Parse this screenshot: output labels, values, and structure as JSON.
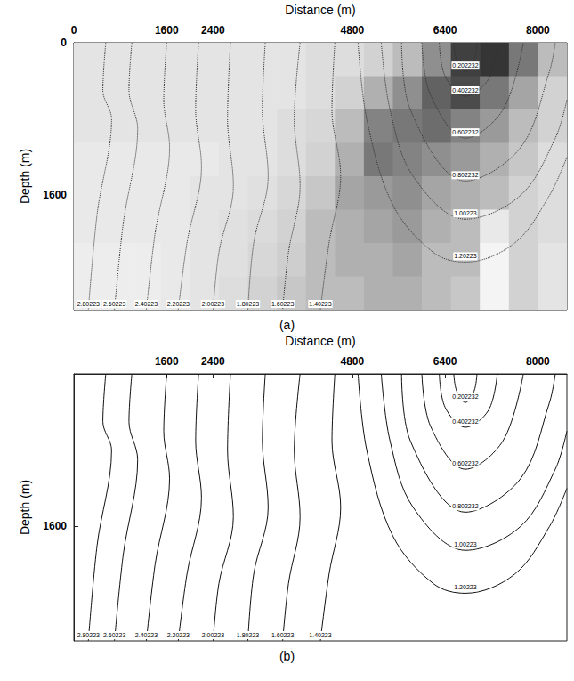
{
  "chart_data": [
    {
      "type": "contour",
      "label": "(a)",
      "x_label": "Distance (m)",
      "y_label": "Depth (m)",
      "xlim": [
        0,
        8500
      ],
      "ylim": [
        0,
        2800
      ],
      "xticks": [
        0,
        1600,
        2400,
        4800,
        6400,
        8000
      ],
      "yticks": [
        0,
        1600
      ],
      "grid": false,
      "line_style": "dotted",
      "color": "#333333",
      "amplitude": {
        "x_bins": [
          0,
          500,
          1000,
          1500,
          2000,
          2500,
          3000,
          3500,
          4000,
          4500,
          5000,
          5500,
          6000,
          6500,
          7000,
          7500,
          8000,
          8500
        ],
        "depth_bins": [
          0,
          350,
          700,
          1050,
          1400,
          1750,
          2100,
          2450,
          2800
        ],
        "values": [
          [
            0.12,
            0.12,
            0.12,
            0.12,
            0.12,
            0.12,
            0.12,
            0.12,
            0.15,
            0.15,
            0.2,
            0.3,
            0.5,
            0.85,
            0.9,
            0.6,
            0.3
          ],
          [
            0.12,
            0.12,
            0.12,
            0.12,
            0.12,
            0.12,
            0.12,
            0.12,
            0.15,
            0.2,
            0.35,
            0.5,
            0.7,
            0.8,
            0.6,
            0.4,
            0.2
          ],
          [
            0.12,
            0.12,
            0.12,
            0.12,
            0.12,
            0.12,
            0.12,
            0.15,
            0.18,
            0.3,
            0.55,
            0.6,
            0.65,
            0.55,
            0.45,
            0.3,
            0.2
          ],
          [
            0.1,
            0.1,
            0.1,
            0.1,
            0.1,
            0.12,
            0.12,
            0.15,
            0.2,
            0.35,
            0.6,
            0.55,
            0.5,
            0.45,
            0.35,
            0.25,
            0.15
          ],
          [
            0.1,
            0.1,
            0.1,
            0.1,
            0.12,
            0.12,
            0.14,
            0.18,
            0.25,
            0.4,
            0.45,
            0.5,
            0.4,
            0.35,
            0.3,
            0.2,
            0.15
          ],
          [
            0.1,
            0.1,
            0.1,
            0.1,
            0.12,
            0.14,
            0.16,
            0.2,
            0.3,
            0.35,
            0.4,
            0.45,
            0.35,
            0.3,
            0.1,
            0.2,
            0.15
          ],
          [
            0.08,
            0.08,
            0.08,
            0.1,
            0.12,
            0.14,
            0.18,
            0.22,
            0.3,
            0.35,
            0.35,
            0.4,
            0.3,
            0.3,
            0.05,
            0.2,
            0.12
          ],
          [
            0.08,
            0.08,
            0.08,
            0.1,
            0.12,
            0.15,
            0.2,
            0.25,
            0.3,
            0.3,
            0.35,
            0.35,
            0.3,
            0.25,
            0.05,
            0.2,
            0.12
          ]
        ]
      },
      "series": [
        {
          "name": "0.202232",
          "values": [
            [
              6550,
              0
            ],
            [
              6600,
              180
            ],
            [
              6750,
              300
            ],
            [
              6900,
              180
            ],
            [
              6950,
              0
            ]
          ]
        },
        {
          "name": "0.402232",
          "values": [
            [
              6300,
              0
            ],
            [
              6400,
              350
            ],
            [
              6750,
              560
            ],
            [
              7150,
              380
            ],
            [
              7300,
              0
            ]
          ]
        },
        {
          "name": "0.602232",
          "values": [
            [
              6000,
              0
            ],
            [
              6150,
              550
            ],
            [
              6750,
              1000
            ],
            [
              7400,
              700
            ],
            [
              7750,
              0
            ]
          ]
        },
        {
          "name": "0.802232",
          "values": [
            [
              5650,
              0
            ],
            [
              5800,
              700
            ],
            [
              6750,
              1450
            ],
            [
              7700,
              1100
            ],
            [
              8200,
              300
            ],
            [
              8300,
              0
            ]
          ]
        },
        {
          "name": "1.00223",
          "values": [
            [
              5300,
              0
            ],
            [
              5450,
              700
            ],
            [
              5850,
              1400
            ],
            [
              6750,
              1850
            ],
            [
              7700,
              1600
            ],
            [
              8300,
              1000
            ],
            [
              8500,
              600
            ]
          ]
        },
        {
          "name": "1.20223",
          "values": [
            [
              4900,
              0
            ],
            [
              5050,
              800
            ],
            [
              5500,
              1700
            ],
            [
              6200,
              2200
            ],
            [
              6750,
              2300
            ],
            [
              7600,
              2100
            ],
            [
              8200,
              1600
            ],
            [
              8500,
              1200
            ]
          ]
        },
        {
          "name": "1.40223",
          "values": [
            [
              4500,
              0
            ],
            [
              4450,
              700
            ],
            [
              4600,
              1400
            ],
            [
              4400,
              2100
            ],
            [
              4250,
              2800
            ]
          ]
        },
        {
          "name": "1.60223",
          "values": [
            [
              3900,
              0
            ],
            [
              3800,
              800
            ],
            [
              3900,
              1500
            ],
            [
              3700,
              2200
            ],
            [
              3600,
              2800
            ]
          ]
        },
        {
          "name": "1.80223",
          "values": [
            [
              3300,
              0
            ],
            [
              3250,
              700
            ],
            [
              3350,
              1400
            ],
            [
              3100,
              2100
            ],
            [
              3000,
              2800
            ]
          ]
        },
        {
          "name": "2.00223",
          "values": [
            [
              2700,
              0
            ],
            [
              2650,
              800
            ],
            [
              2750,
              1500
            ],
            [
              2500,
              2200
            ],
            [
              2400,
              2800
            ]
          ]
        },
        {
          "name": "2.20223",
          "values": [
            [
              2150,
              0
            ],
            [
              2100,
              700
            ],
            [
              2200,
              1300
            ],
            [
              1950,
              2100
            ],
            [
              1800,
              2800
            ]
          ]
        },
        {
          "name": "2.40223",
          "values": [
            [
              1600,
              0
            ],
            [
              1550,
              600
            ],
            [
              1650,
              1100
            ],
            [
              1400,
              2000
            ],
            [
              1250,
              2800
            ]
          ]
        },
        {
          "name": "2.60223",
          "values": [
            [
              1000,
              0
            ],
            [
              950,
              500
            ],
            [
              1100,
              900
            ],
            [
              850,
              1900
            ],
            [
              700,
              2800
            ]
          ]
        },
        {
          "name": "2.80223",
          "values": [
            [
              550,
              0
            ],
            [
              500,
              500
            ],
            [
              650,
              800
            ],
            [
              400,
              1800
            ],
            [
              250,
              2800
            ]
          ]
        }
      ]
    },
    {
      "type": "contour",
      "label": "(b)",
      "x_label": "Distance (m)",
      "y_label": "Depth (m)",
      "xlim": [
        0,
        8500
      ],
      "ylim": [
        0,
        2800
      ],
      "xticks": [
        1600,
        2400,
        4800,
        6400,
        8000
      ],
      "yticks": [
        1600
      ],
      "grid": false,
      "line_style": "solid",
      "color": "#111111",
      "series": [
        {
          "name": "0.202232",
          "values": [
            [
              6550,
              0
            ],
            [
              6600,
              180
            ],
            [
              6750,
              300
            ],
            [
              6900,
              180
            ],
            [
              6950,
              0
            ]
          ]
        },
        {
          "name": "0.402232",
          "values": [
            [
              6300,
              0
            ],
            [
              6400,
              350
            ],
            [
              6750,
              560
            ],
            [
              7150,
              380
            ],
            [
              7300,
              0
            ]
          ]
        },
        {
          "name": "0.602232",
          "values": [
            [
              6000,
              0
            ],
            [
              6150,
              550
            ],
            [
              6750,
              1000
            ],
            [
              7400,
              700
            ],
            [
              7750,
              0
            ]
          ]
        },
        {
          "name": "0.802232",
          "values": [
            [
              5650,
              0
            ],
            [
              5800,
              700
            ],
            [
              6750,
              1450
            ],
            [
              7700,
              1100
            ],
            [
              8200,
              300
            ],
            [
              8300,
              0
            ]
          ]
        },
        {
          "name": "1.00223",
          "values": [
            [
              5300,
              0
            ],
            [
              5450,
              700
            ],
            [
              5850,
              1400
            ],
            [
              6750,
              1850
            ],
            [
              7700,
              1600
            ],
            [
              8300,
              1000
            ],
            [
              8500,
              600
            ]
          ]
        },
        {
          "name": "1.20223",
          "values": [
            [
              4900,
              0
            ],
            [
              5050,
              800
            ],
            [
              5500,
              1700
            ],
            [
              6200,
              2200
            ],
            [
              6750,
              2300
            ],
            [
              7600,
              2100
            ],
            [
              8200,
              1600
            ],
            [
              8500,
              1200
            ]
          ]
        },
        {
          "name": "1.40223",
          "values": [
            [
              4500,
              0
            ],
            [
              4450,
              700
            ],
            [
              4600,
              1400
            ],
            [
              4400,
              2100
            ],
            [
              4250,
              2800
            ]
          ]
        },
        {
          "name": "1.60223",
          "values": [
            [
              3900,
              0
            ],
            [
              3800,
              800
            ],
            [
              3900,
              1500
            ],
            [
              3700,
              2200
            ],
            [
              3600,
              2800
            ]
          ]
        },
        {
          "name": "1.80223",
          "values": [
            [
              3300,
              0
            ],
            [
              3250,
              700
            ],
            [
              3350,
              1400
            ],
            [
              3100,
              2100
            ],
            [
              3000,
              2800
            ]
          ]
        },
        {
          "name": "2.00223",
          "values": [
            [
              2700,
              0
            ],
            [
              2650,
              800
            ],
            [
              2750,
              1500
            ],
            [
              2500,
              2200
            ],
            [
              2400,
              2800
            ]
          ]
        },
        {
          "name": "2.20223",
          "values": [
            [
              2150,
              0
            ],
            [
              2100,
              700
            ],
            [
              2200,
              1300
            ],
            [
              1950,
              2100
            ],
            [
              1800,
              2800
            ]
          ]
        },
        {
          "name": "2.40223",
          "values": [
            [
              1600,
              0
            ],
            [
              1550,
              600
            ],
            [
              1650,
              1100
            ],
            [
              1400,
              2000
            ],
            [
              1250,
              2800
            ]
          ]
        },
        {
          "name": "2.60223",
          "values": [
            [
              1000,
              0
            ],
            [
              950,
              500
            ],
            [
              1100,
              900
            ],
            [
              850,
              1900
            ],
            [
              700,
              2800
            ]
          ]
        },
        {
          "name": "2.80223",
          "values": [
            [
              550,
              0
            ],
            [
              500,
              500
            ],
            [
              650,
              800
            ],
            [
              400,
              1800
            ],
            [
              250,
              2800
            ]
          ]
        }
      ]
    }
  ]
}
